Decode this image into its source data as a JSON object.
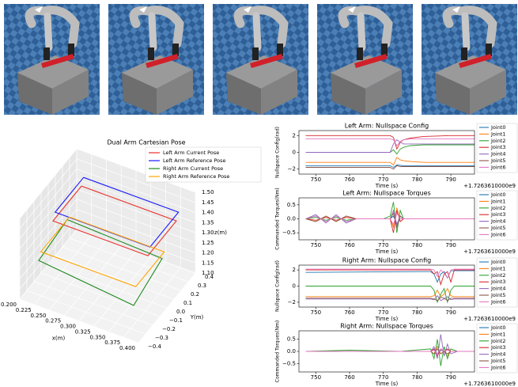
{
  "chart_data": [
    {
      "type": "line3d",
      "title": "Dual Arm Cartesian Pose",
      "xlabel": "x(m)",
      "ylabel": "Y(m)",
      "zlabel": "z(m)",
      "xlim": [
        0.2,
        0.4
      ],
      "ylim": [
        -0.4,
        0.4
      ],
      "zlim": [
        1.1,
        1.5
      ],
      "xticks": [
        {
          "value": 0.2,
          "label": "0.200"
        },
        0.225,
        {
          "value": 0.25,
          "label": "0.250"
        },
        0.275,
        {
          "value": 0.3,
          "label": "0.300"
        },
        0.325,
        {
          "value": 0.35,
          "label": "0.350"
        },
        0.375,
        {
          "value": 0.4,
          "label": "0.400"
        }
      ],
      "yticks": [
        {
          "value": -0.4,
          "label": "−0.4"
        },
        {
          "value": -0.3,
          "label": "−0.3"
        },
        {
          "value": -0.2,
          "label": "−0.2"
        },
        {
          "value": -0.1,
          "label": "−0.1"
        },
        {
          "value": 0,
          "label": "0.0"
        },
        0.1,
        0.2,
        0.3,
        0.4
      ],
      "zticks": [
        {
          "value": 1.1,
          "label": "1.10"
        },
        1.15,
        {
          "value": 1.2,
          "label": "1.20"
        },
        1.25,
        {
          "value": 1.3,
          "label": "1.30"
        },
        1.35,
        {
          "value": 1.4,
          "label": "1.40"
        },
        1.45,
        {
          "value": 1.5,
          "label": "1.50"
        }
      ],
      "series": [
        {
          "name": "Left Arm Current Pose",
          "color": "#e8302a",
          "x": [
            0.22,
            0.38,
            0.38,
            0.22,
            0.22
          ],
          "y": [
            0.3,
            0.3,
            -0.1,
            -0.1,
            0.3
          ],
          "z": [
            1.38,
            1.38,
            1.38,
            1.38,
            1.38
          ]
        },
        {
          "name": "Left Arm Reference Pose",
          "color": "#1a1aff",
          "x": [
            0.22,
            0.38,
            0.38,
            0.22,
            0.22
          ],
          "y": [
            0.33,
            0.33,
            -0.07,
            -0.07,
            0.33
          ],
          "z": [
            1.41,
            1.41,
            1.41,
            1.41,
            1.41
          ]
        },
        {
          "name": "Right Arm Current Pose",
          "color": "#1f8a1f",
          "x": [
            0.22,
            0.38,
            0.38,
            0.22,
            0.22
          ],
          "y": [
            0.1,
            0.1,
            -0.3,
            -0.3,
            0.1
          ],
          "z": [
            1.3,
            1.28,
            1.22,
            1.27,
            1.3
          ]
        },
        {
          "name": "Right Arm Reference Pose",
          "color": "#ffa500",
          "x": [
            0.22,
            0.38,
            0.38,
            0.22,
            0.22
          ],
          "y": [
            0.13,
            0.13,
            -0.27,
            -0.27,
            0.13
          ],
          "z": [
            1.3,
            1.3,
            1.3,
            1.3,
            1.3
          ]
        }
      ]
    },
    {
      "type": "line",
      "title": "Left Arm: Nullspace Config",
      "ylabel": "Nullspace Config(rad)",
      "xlabel": "Time (s)",
      "x_offset_label": "+1.7263610000e9",
      "xlim": [
        745,
        797
      ],
      "ylim": [
        -2.6,
        2.6
      ],
      "xticks": [
        750,
        760,
        770,
        780,
        790
      ],
      "yticks": [
        {
          "value": -2,
          "label": "−2"
        },
        0,
        2
      ],
      "x": [
        747,
        765,
        770,
        772,
        773,
        774,
        775,
        776,
        778,
        782,
        790,
        797
      ],
      "series": [
        {
          "name": "Joint0",
          "color": "#1f77b4",
          "values": [
            -1.6,
            -1.6,
            -1.6,
            -1.6,
            -1.8,
            -1.5,
            -1.55,
            -1.6,
            -1.6,
            -1.6,
            -1.6,
            -1.6
          ]
        },
        {
          "name": "Joint1",
          "color": "#ff7f0e",
          "values": [
            -1.2,
            -1.2,
            -1.2,
            -1.2,
            -1.5,
            -0.6,
            -0.9,
            -1.0,
            -1.1,
            -1.2,
            -1.2,
            -1.2
          ]
        },
        {
          "name": "Joint2",
          "color": "#2ca02c",
          "values": [
            0,
            0,
            0,
            0,
            0.3,
            -0.2,
            0.4,
            0.6,
            0.8,
            0.9,
            0.9,
            0.9
          ]
        },
        {
          "name": "Joint3",
          "color": "#d62728",
          "values": [
            2,
            2,
            2,
            2,
            1.8,
            0.4,
            1.2,
            1.5,
            1.7,
            1.9,
            2,
            2
          ]
        },
        {
          "name": "Joint4",
          "color": "#9467bd",
          "values": [
            0,
            0,
            0,
            0,
            1,
            1.5,
            1.2,
            1.0,
            1.0,
            1.0,
            1.0,
            1.0
          ]
        },
        {
          "name": "Joint5",
          "color": "#8c564b",
          "values": [
            -1.8,
            -1.8,
            -1.8,
            -1.8,
            -2.0,
            -1.6,
            -1.7,
            -1.7,
            -1.7,
            -1.7,
            -1.7,
            -1.7
          ]
        },
        {
          "name": "Joint6",
          "color": "#e377c2",
          "values": [
            1.6,
            1.6,
            1.6,
            1.6,
            1.5,
            0.8,
            1.3,
            1.5,
            1.6,
            1.6,
            1.6,
            1.6
          ]
        }
      ]
    },
    {
      "type": "line",
      "title": "Left Arm: Nullspace Torques",
      "ylabel": "Commanded Torques(Nm)",
      "xlabel": "Time (s)",
      "x_offset_label": "+1.7263610000e9",
      "xlim": [
        745,
        797
      ],
      "ylim": [
        -0.75,
        0.75
      ],
      "xticks": [
        750,
        760,
        770,
        780,
        790
      ],
      "yticks": [
        {
          "value": -0.5,
          "label": "−0.5"
        },
        {
          "value": 0,
          "label": "0.0"
        },
        0.5
      ],
      "x": [
        747,
        750,
        753,
        756,
        759,
        762,
        770,
        772,
        773,
        774,
        775,
        776,
        778,
        785,
        797
      ],
      "series": [
        {
          "name": "Joint0",
          "color": "#1f77b4",
          "values": [
            0,
            0.1,
            -0.1,
            0.1,
            -0.1,
            0,
            0,
            0,
            0.1,
            -0.2,
            0.1,
            0,
            0,
            0,
            0
          ]
        },
        {
          "name": "Joint1",
          "color": "#ff7f0e",
          "values": [
            0,
            -0.1,
            0.1,
            -0.1,
            0.1,
            0,
            0,
            0,
            -0.3,
            0.4,
            -0.1,
            0,
            0,
            0,
            0
          ]
        },
        {
          "name": "Joint2",
          "color": "#2ca02c",
          "values": [
            0,
            0.05,
            -0.05,
            0.05,
            -0.05,
            0,
            0,
            0.1,
            0.6,
            -0.5,
            0.3,
            0,
            0,
            0,
            0
          ]
        },
        {
          "name": "Joint3",
          "color": "#d62728",
          "values": [
            0,
            -0.05,
            0.05,
            -0.05,
            0.05,
            0,
            0,
            0,
            -0.5,
            0.3,
            -0.1,
            0,
            0,
            0,
            0
          ]
        },
        {
          "name": "Joint4",
          "color": "#9467bd",
          "values": [
            0,
            0.15,
            -0.15,
            0.15,
            -0.15,
            0,
            0,
            0,
            0.3,
            -0.2,
            0.1,
            0,
            0,
            0,
            0
          ]
        },
        {
          "name": "Joint5",
          "color": "#8c564b",
          "values": [
            0,
            -0.1,
            0.1,
            -0.1,
            0.1,
            0,
            0,
            0,
            0.2,
            -0.3,
            0.1,
            0,
            0,
            0,
            0
          ]
        },
        {
          "name": "Joint6",
          "color": "#e377c2",
          "values": [
            0,
            0.1,
            -0.1,
            0.1,
            -0.1,
            0,
            0,
            0,
            -0.2,
            0.2,
            0,
            0,
            0,
            0,
            0
          ]
        }
      ]
    },
    {
      "type": "line",
      "title": "Right Arm: Nullspace Config",
      "ylabel": "Nullspace Config(rad)",
      "xlabel": "Time (s)",
      "x_offset_label": "+1.7263610000e9",
      "xlim": [
        745,
        797
      ],
      "ylim": [
        -2.6,
        2.6
      ],
      "xticks": [
        750,
        760,
        770,
        780,
        790
      ],
      "yticks": [
        {
          "value": -2,
          "label": "−2"
        },
        0,
        2
      ],
      "x": [
        747,
        780,
        784,
        785,
        786,
        787,
        788,
        789,
        790,
        791,
        793,
        797
      ],
      "series": [
        {
          "name": "Joint0",
          "color": "#1f77b4",
          "values": [
            1.7,
            1.8,
            1.8,
            1.5,
            0.5,
            1.5,
            1.8,
            1.0,
            1.9,
            1.9,
            1.9,
            1.9
          ]
        },
        {
          "name": "Joint1",
          "color": "#ff7f0e",
          "values": [
            -1.3,
            -1.3,
            -1.3,
            -1.2,
            -0.5,
            -1.3,
            -1.0,
            -0.3,
            -1.2,
            -1.3,
            -1.3,
            -1.3
          ]
        },
        {
          "name": "Joint2",
          "color": "#2ca02c",
          "values": [
            0,
            0,
            0,
            -0.5,
            -2,
            -1,
            -0.3,
            -2,
            -0.5,
            0,
            0,
            0
          ]
        },
        {
          "name": "Joint3",
          "color": "#d62728",
          "values": [
            2,
            2,
            2,
            1.5,
            1.8,
            0.2,
            1.5,
            1.8,
            0.5,
            2,
            2,
            2
          ]
        },
        {
          "name": "Joint4",
          "color": "#9467bd",
          "values": [
            -1.6,
            -1.6,
            -1.6,
            -1.7,
            -1.2,
            -1.8,
            -1.6,
            -1.3,
            -1.7,
            -1.6,
            -1.6,
            -1.6
          ]
        },
        {
          "name": "Joint5",
          "color": "#8c564b",
          "values": [
            -1.5,
            -1.5,
            -1.5,
            -1.6,
            -1.8,
            -1.4,
            -1.5,
            -1.8,
            -1.5,
            -1.5,
            -1.5,
            -1.5
          ]
        },
        {
          "name": "Joint6",
          "color": "#e377c2",
          "values": [
            2.1,
            2.1,
            2.1,
            2.0,
            1.2,
            2.0,
            1.6,
            1.0,
            2.0,
            2.1,
            2.1,
            2.1
          ]
        }
      ]
    },
    {
      "type": "line",
      "title": "Right Arm: Nullspace Torques",
      "ylabel": "Commanded Torques(Nm)",
      "xlabel": "Time (s)",
      "x_offset_label": "+1.7263610000e9",
      "xlim": [
        745,
        797
      ],
      "ylim": [
        -0.85,
        0.85
      ],
      "xticks": [
        750,
        760,
        770,
        780,
        790
      ],
      "yticks": [
        {
          "value": -0.5,
          "label": "−0.5"
        },
        {
          "value": 0,
          "label": "0.0"
        },
        0.5
      ],
      "x": [
        747,
        760,
        775,
        784,
        785,
        786,
        787,
        788,
        789,
        790,
        792,
        797
      ],
      "series": [
        {
          "name": "Joint0",
          "color": "#1f77b4",
          "values": [
            0,
            0,
            0,
            0,
            0.1,
            -0.1,
            0.05,
            0,
            0.1,
            0,
            0,
            0
          ]
        },
        {
          "name": "Joint1",
          "color": "#ff7f0e",
          "values": [
            0,
            0,
            0,
            0,
            -0.1,
            0.2,
            -0.1,
            0,
            -0.2,
            0.1,
            0,
            0
          ]
        },
        {
          "name": "Joint2",
          "color": "#2ca02c",
          "values": [
            0,
            0.05,
            0,
            0.1,
            -0.3,
            0.5,
            -0.6,
            0.2,
            -0.3,
            0.1,
            0,
            0
          ]
        },
        {
          "name": "Joint3",
          "color": "#d62728",
          "values": [
            0,
            0,
            0,
            0,
            0.1,
            -0.2,
            0.1,
            0,
            0.1,
            0,
            0,
            0
          ]
        },
        {
          "name": "Joint4",
          "color": "#9467bd",
          "values": [
            0,
            0,
            0,
            0,
            0.2,
            -0.3,
            0.7,
            -0.2,
            0.3,
            -0.1,
            0,
            0
          ]
        },
        {
          "name": "Joint5",
          "color": "#8c564b",
          "values": [
            0,
            0,
            0,
            0,
            -0.1,
            0.1,
            -0.1,
            0,
            -0.1,
            0,
            0,
            0
          ]
        },
        {
          "name": "Joint6",
          "color": "#e377c2",
          "values": [
            0,
            0,
            0,
            0,
            0.05,
            -0.1,
            0.1,
            0,
            0.05,
            0,
            0,
            0
          ]
        }
      ]
    }
  ]
}
